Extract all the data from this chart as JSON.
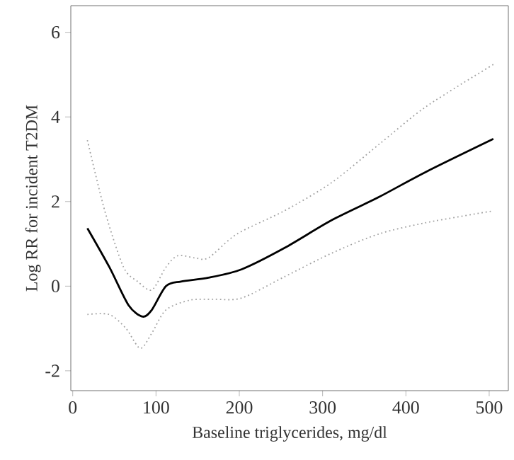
{
  "chart_data": {
    "type": "line",
    "xlabel": "Baseline triglycerides, mg/dl",
    "ylabel": "Log RR for incident T2DM",
    "xlim": [
      -2.3,
      523
    ],
    "ylim": [
      -2.47,
      6.63
    ],
    "xticks": [
      0,
      100,
      200,
      300,
      400,
      500
    ],
    "yticks": [
      -2,
      0,
      2,
      4,
      6
    ],
    "marker": "none",
    "series": [
      {
        "color": "#000000",
        "line_style": "solid",
        "x": [
          17.6,
          44,
          67,
          84,
          95,
          112,
          130,
          163,
          203,
          254,
          311,
          367,
          424,
          505
        ],
        "values": [
          1.37,
          0.45,
          -0.45,
          -0.72,
          -0.56,
          0,
          0.11,
          0.2,
          0.4,
          0.9,
          1.56,
          2.1,
          2.7,
          3.48
        ]
      },
      {
        "color": "#a0a0a0",
        "line_style": "dotted",
        "x": [
          17.6,
          38.5,
          61,
          78,
          95,
          112,
          126,
          146,
          163,
          197,
          254,
          311,
          367,
          424,
          505
        ],
        "values": [
          3.45,
          1.78,
          0.45,
          0.11,
          -0.09,
          0.45,
          0.72,
          0.67,
          0.67,
          1.23,
          1.78,
          2.45,
          3.34,
          4.24,
          5.24
        ]
      },
      {
        "color": "#a0a0a0",
        "line_style": "dotted",
        "x": [
          17.6,
          44,
          64,
          81,
          95,
          112,
          141,
          169,
          203,
          254,
          311,
          367,
          424,
          505
        ],
        "values": [
          -0.67,
          -0.67,
          -1.0,
          -1.47,
          -1.11,
          -0.56,
          -0.33,
          -0.31,
          -0.28,
          0.22,
          0.78,
          1.23,
          1.5,
          1.78
        ]
      }
    ]
  }
}
